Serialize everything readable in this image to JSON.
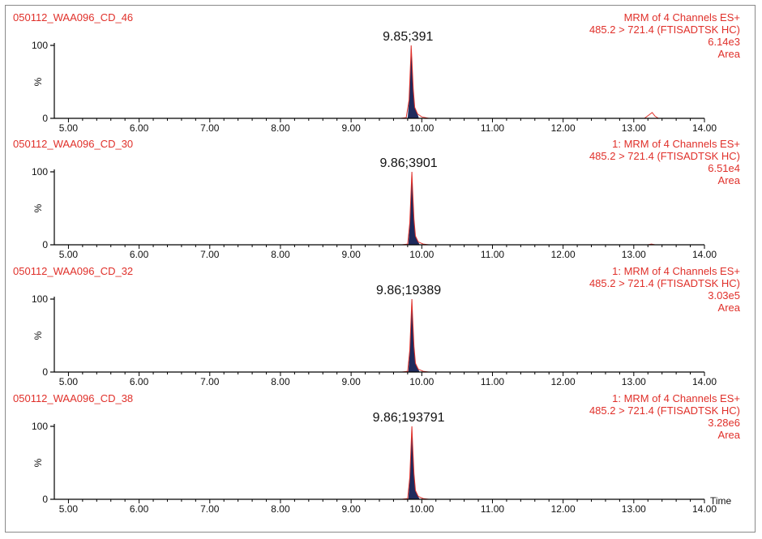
{
  "chart_data": [
    {
      "type": "line",
      "sample": "050112_WAA096_CD_46",
      "header_lines": [
        "MRM of 4 Channels ES+",
        "485.2 > 721.4 (FTISADTSK HC)",
        "6.14e3",
        "Area"
      ],
      "peak_label": "9.85;391",
      "ylabel": "%",
      "y_ticks": [
        "100",
        "0"
      ],
      "ylim": [
        0,
        100
      ],
      "xlim": [
        4.8,
        14.0
      ],
      "x_ticks": [
        "5.00",
        "6.00",
        "7.00",
        "8.00",
        "9.00",
        "10.00",
        "11.00",
        "12.00",
        "13.00",
        "14.00"
      ],
      "x_tick_values": [
        5,
        6,
        7,
        8,
        9,
        10,
        11,
        12,
        13,
        14
      ],
      "trace": [
        [
          4.8,
          0
        ],
        [
          9.7,
          0
        ],
        [
          9.78,
          1
        ],
        [
          9.82,
          25
        ],
        [
          9.845,
          85
        ],
        [
          9.85,
          100
        ],
        [
          9.86,
          80
        ],
        [
          9.88,
          40
        ],
        [
          9.9,
          15
        ],
        [
          9.94,
          6
        ],
        [
          10.0,
          2
        ],
        [
          10.1,
          0
        ],
        [
          13.15,
          0
        ],
        [
          13.22,
          5
        ],
        [
          13.26,
          8
        ],
        [
          13.3,
          3
        ],
        [
          13.35,
          0
        ],
        [
          14.0,
          0
        ]
      ],
      "peak_fill": [
        [
          9.8,
          0
        ],
        [
          9.82,
          25
        ],
        [
          9.845,
          85
        ],
        [
          9.85,
          100
        ],
        [
          9.86,
          80
        ],
        [
          9.88,
          40
        ],
        [
          9.9,
          15
        ],
        [
          9.94,
          6
        ],
        [
          9.96,
          0
        ]
      ]
    },
    {
      "type": "line",
      "sample": "050112_WAA096_CD_30",
      "header_lines": [
        "1: MRM of 4 Channels ES+",
        "485.2 > 721.4 (FTISADTSK HC)",
        "6.51e4",
        "Area"
      ],
      "peak_label": "9.86;3901",
      "ylabel": "%",
      "y_ticks": [
        "100",
        "0"
      ],
      "ylim": [
        0,
        100
      ],
      "xlim": [
        4.8,
        14.0
      ],
      "x_ticks": [
        "5.00",
        "6.00",
        "7.00",
        "8.00",
        "9.00",
        "10.00",
        "11.00",
        "12.00",
        "13.00",
        "14.00"
      ],
      "x_tick_values": [
        5,
        6,
        7,
        8,
        9,
        10,
        11,
        12,
        13,
        14
      ],
      "trace": [
        [
          4.8,
          0
        ],
        [
          9.72,
          0
        ],
        [
          9.8,
          1
        ],
        [
          9.83,
          30
        ],
        [
          9.855,
          90
        ],
        [
          9.86,
          100
        ],
        [
          9.87,
          75
        ],
        [
          9.89,
          35
        ],
        [
          9.91,
          12
        ],
        [
          9.95,
          4
        ],
        [
          10.02,
          1
        ],
        [
          10.1,
          0
        ],
        [
          13.2,
          0
        ],
        [
          13.25,
          1
        ],
        [
          13.3,
          0
        ],
        [
          14.0,
          0
        ]
      ],
      "peak_fill": [
        [
          9.81,
          0
        ],
        [
          9.83,
          30
        ],
        [
          9.855,
          90
        ],
        [
          9.86,
          100
        ],
        [
          9.87,
          75
        ],
        [
          9.89,
          35
        ],
        [
          9.91,
          12
        ],
        [
          9.95,
          4
        ],
        [
          9.97,
          0
        ]
      ]
    },
    {
      "type": "line",
      "sample": "050112_WAA096_CD_32",
      "header_lines": [
        "1: MRM of 4 Channels ES+",
        "485.2 > 721.4 (FTISADTSK HC)",
        "3.03e5",
        "Area"
      ],
      "peak_label": "9.86;19389",
      "ylabel": "%",
      "y_ticks": [
        "100",
        "0"
      ],
      "ylim": [
        0,
        100
      ],
      "xlim": [
        4.8,
        14.0
      ],
      "x_ticks": [
        "5.00",
        "6.00",
        "7.00",
        "8.00",
        "9.00",
        "10.00",
        "11.00",
        "12.00",
        "13.00",
        "14.00"
      ],
      "x_tick_values": [
        5,
        6,
        7,
        8,
        9,
        10,
        11,
        12,
        13,
        14
      ],
      "trace": [
        [
          4.8,
          0
        ],
        [
          9.72,
          0
        ],
        [
          9.8,
          1
        ],
        [
          9.83,
          30
        ],
        [
          9.855,
          90
        ],
        [
          9.86,
          100
        ],
        [
          9.87,
          75
        ],
        [
          9.89,
          35
        ],
        [
          9.91,
          12
        ],
        [
          9.95,
          4
        ],
        [
          10.02,
          1
        ],
        [
          10.1,
          0
        ],
        [
          14.0,
          0
        ]
      ],
      "peak_fill": [
        [
          9.81,
          0
        ],
        [
          9.83,
          30
        ],
        [
          9.855,
          90
        ],
        [
          9.86,
          100
        ],
        [
          9.87,
          75
        ],
        [
          9.89,
          35
        ],
        [
          9.91,
          12
        ],
        [
          9.95,
          4
        ],
        [
          9.97,
          0
        ]
      ]
    },
    {
      "type": "line",
      "sample": "050112_WAA096_CD_38",
      "header_lines": [
        "1: MRM of 4 Channels ES+",
        "485.2 > 721.4 (FTISADTSK HC)",
        "3.28e6",
        "Area"
      ],
      "peak_label": "9.86;193791",
      "ylabel": "%",
      "y_ticks": [
        "100",
        "0"
      ],
      "ylim": [
        0,
        100
      ],
      "xlim": [
        4.8,
        14.0
      ],
      "x_ticks": [
        "5.00",
        "6.00",
        "7.00",
        "8.00",
        "9.00",
        "10.00",
        "11.00",
        "12.00",
        "13.00",
        "14.00"
      ],
      "x_tick_values": [
        5,
        6,
        7,
        8,
        9,
        10,
        11,
        12,
        13,
        14
      ],
      "xlabel": "Time",
      "trace": [
        [
          4.8,
          0
        ],
        [
          9.72,
          0
        ],
        [
          9.8,
          1
        ],
        [
          9.83,
          30
        ],
        [
          9.855,
          90
        ],
        [
          9.86,
          100
        ],
        [
          9.87,
          75
        ],
        [
          9.89,
          35
        ],
        [
          9.91,
          12
        ],
        [
          9.95,
          4
        ],
        [
          10.02,
          1
        ],
        [
          10.1,
          0
        ],
        [
          14.0,
          0
        ]
      ],
      "peak_fill": [
        [
          9.81,
          0
        ],
        [
          9.83,
          30
        ],
        [
          9.855,
          90
        ],
        [
          9.86,
          100
        ],
        [
          9.87,
          75
        ],
        [
          9.89,
          35
        ],
        [
          9.91,
          12
        ],
        [
          9.95,
          4
        ],
        [
          9.97,
          0
        ]
      ]
    }
  ],
  "colors": {
    "trace": "#e0302a",
    "peak_fill": "#1f2a5c",
    "axis": "#000000",
    "header_text": "#e0302a",
    "frame": "#8a8a8a"
  }
}
